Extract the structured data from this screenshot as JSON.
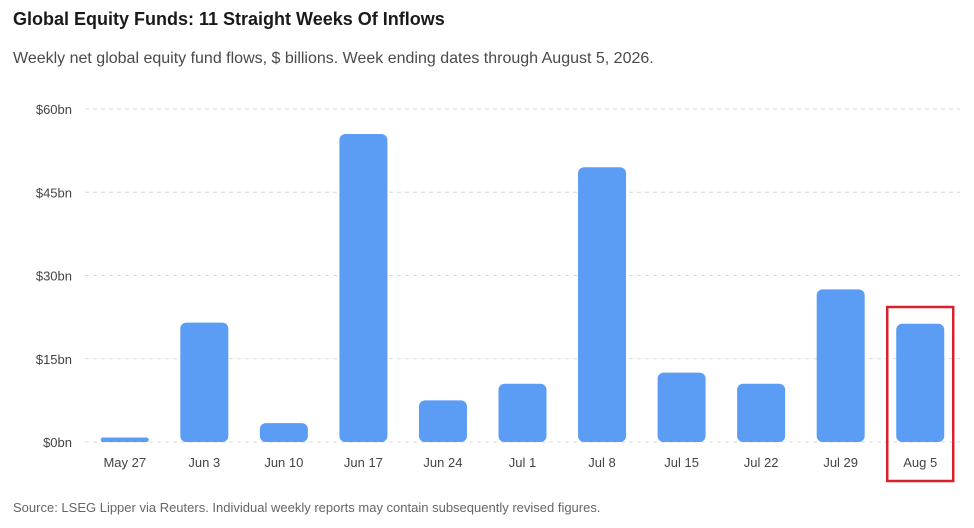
{
  "title": "Global Equity Funds: 11 Straight Weeks Of Inflows",
  "subtitle": "Weekly net global equity fund flows, $ billions. Week ending dates through August 5, 2026.",
  "source": "Source: LSEG Lipper via Reuters. Individual weekly reports may contain subsequently revised figures.",
  "colors": {
    "bar": "#5b9cf5",
    "highlight_box": "#d9212b",
    "grid": "#d9d9d9"
  },
  "chart_data": {
    "type": "bar",
    "categories": [
      "May 27",
      "Jun 3",
      "Jun 10",
      "Jun 17",
      "Jun 24",
      "Jul 1",
      "Jul 8",
      "Jul 15",
      "Jul 22",
      "Jul 29",
      "Aug 5"
    ],
    "values": [
      0.8,
      21.5,
      3.4,
      55.5,
      7.5,
      10.5,
      49.5,
      12.5,
      10.5,
      27.5,
      21.3
    ],
    "ylim": [
      0,
      60
    ],
    "yticks": [
      0,
      15,
      30,
      45,
      60
    ],
    "ytick_labels": [
      "$0bn",
      "$15bn",
      "$30bn",
      "$45bn",
      "$60bn"
    ],
    "grid": true,
    "highlighted_category": "Aug 5"
  }
}
